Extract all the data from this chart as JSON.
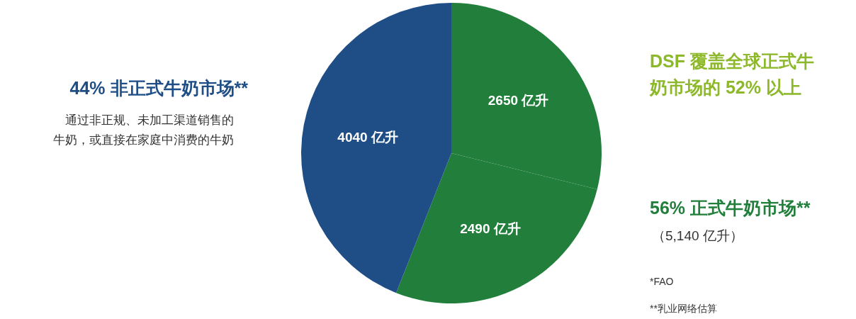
{
  "chart_data": {
    "type": "pie",
    "categories": [
      null,
      null,
      null
    ],
    "values": [
      2650,
      2490,
      4040
    ],
    "colors": [
      "#217f3b",
      "#217f3b",
      "#1f4e87"
    ],
    "value_labels": [
      "2650 亿升",
      "2490 亿升",
      "4040 亿升"
    ],
    "annotations": [
      "44% 非正式牛奶市场**",
      "通过非正规、未加工渠道销售的",
      "牛奶，或直接在家庭中消费的牛奶",
      "DSF 覆盖全球正式牛",
      "奶市场的 52% 以上",
      "56% 正式牛奶市场**",
      "（5,140 亿升）",
      "*FAO",
      "**乳业网络估算"
    ]
  }
}
